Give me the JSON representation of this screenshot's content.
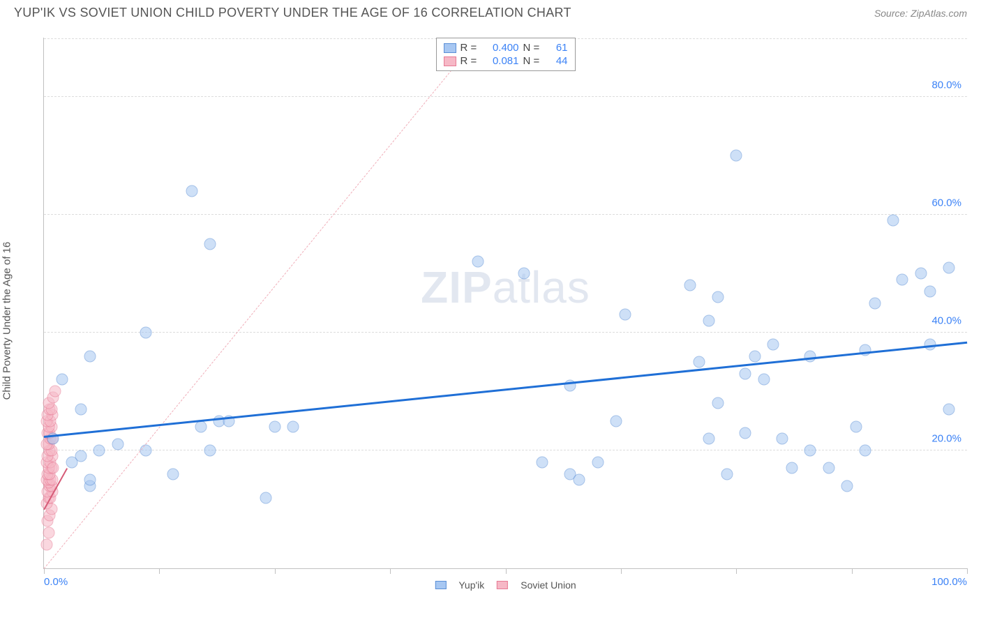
{
  "header": {
    "title": "YUP'IK VS SOVIET UNION CHILD POVERTY UNDER THE AGE OF 16 CORRELATION CHART",
    "source": "Source: ZipAtlas.com"
  },
  "watermark": {
    "bold": "ZIP",
    "light": "atlas"
  },
  "chart": {
    "type": "scatter",
    "yaxis_label": "Child Poverty Under the Age of 16",
    "xlim": [
      0,
      100
    ],
    "ylim": [
      0,
      90
    ],
    "x_ticks": [
      0,
      12.5,
      25,
      37.5,
      50,
      62.5,
      75,
      87.5,
      100
    ],
    "x_tick_labels": {
      "0": "0.0%",
      "100": "100.0%"
    },
    "y_gridlines": [
      20,
      40,
      60,
      80
    ],
    "y_tick_labels": {
      "20": "20.0%",
      "40": "40.0%",
      "60": "60.0%",
      "80": "80.0%"
    },
    "background_color": "#ffffff",
    "grid_color": "#dcdcdc",
    "axis_color": "#c0c0c0",
    "label_color": "#3b82f6",
    "label_fontsize": 15,
    "marker_radius": 8.5,
    "marker_opacity": 0.55,
    "series": [
      {
        "name": "Yup'ik",
        "color_fill": "#a7c7f2",
        "color_stroke": "#5b8fd6",
        "R": "0.400",
        "N": "61",
        "trend": {
          "x1": 0,
          "y1": 22.5,
          "x2": 100,
          "y2": 38.5,
          "color": "#1f6fd6",
          "width": 3
        },
        "points": [
          [
            2,
            32
          ],
          [
            4,
            27
          ],
          [
            5,
            36
          ],
          [
            5,
            14
          ],
          [
            5,
            15
          ],
          [
            6,
            20
          ],
          [
            3,
            18
          ],
          [
            1,
            22
          ],
          [
            4,
            19
          ],
          [
            8,
            21
          ],
          [
            11,
            20
          ],
          [
            11,
            40
          ],
          [
            14,
            16
          ],
          [
            16,
            64
          ],
          [
            17,
            24
          ],
          [
            18,
            20
          ],
          [
            18,
            55
          ],
          [
            19,
            25
          ],
          [
            20,
            25
          ],
          [
            24,
            12
          ],
          [
            25,
            24
          ],
          [
            27,
            24
          ],
          [
            47,
            52
          ],
          [
            52,
            50
          ],
          [
            54,
            18
          ],
          [
            57,
            31
          ],
          [
            57,
            16
          ],
          [
            58,
            15
          ],
          [
            60,
            18
          ],
          [
            62,
            25
          ],
          [
            63,
            43
          ],
          [
            70,
            48
          ],
          [
            71,
            35
          ],
          [
            72,
            42
          ],
          [
            72,
            22
          ],
          [
            73,
            28
          ],
          [
            73,
            46
          ],
          [
            74,
            16
          ],
          [
            75,
            70
          ],
          [
            76,
            33
          ],
          [
            76,
            23
          ],
          [
            77,
            36
          ],
          [
            78,
            32
          ],
          [
            79,
            38
          ],
          [
            80,
            22
          ],
          [
            81,
            17
          ],
          [
            83,
            36
          ],
          [
            83,
            20
          ],
          [
            85,
            17
          ],
          [
            87,
            14
          ],
          [
            88,
            24
          ],
          [
            89,
            20
          ],
          [
            89,
            37
          ],
          [
            90,
            45
          ],
          [
            92,
            59
          ],
          [
            93,
            49
          ],
          [
            95,
            50
          ],
          [
            96,
            38
          ],
          [
            96,
            47
          ],
          [
            98,
            51
          ],
          [
            98,
            27
          ]
        ]
      },
      {
        "name": "Soviet Union",
        "color_fill": "#f6b8c6",
        "color_stroke": "#e77a94",
        "R": "0.081",
        "N": "44",
        "trend": {
          "x1": 0,
          "y1": 0,
          "x2": 47,
          "y2": 90,
          "color": "#f0aeb9",
          "width": 1.2,
          "dashed": true
        },
        "trend_short": {
          "x1": 0,
          "y1": 10,
          "x2": 2.5,
          "y2": 17,
          "color": "#d65b77",
          "width": 2
        },
        "points": [
          [
            0.3,
            4
          ],
          [
            0.5,
            6
          ],
          [
            0.4,
            8
          ],
          [
            0.6,
            9
          ],
          [
            0.8,
            10
          ],
          [
            0.3,
            11
          ],
          [
            0.5,
            12
          ],
          [
            0.7,
            12
          ],
          [
            0.9,
            13
          ],
          [
            0.4,
            13
          ],
          [
            0.6,
            14
          ],
          [
            0.8,
            14
          ],
          [
            0.5,
            14.5
          ],
          [
            0.3,
            15
          ],
          [
            0.7,
            15
          ],
          [
            0.9,
            15
          ],
          [
            0.4,
            16
          ],
          [
            0.6,
            16
          ],
          [
            0.8,
            17
          ],
          [
            0.5,
            17
          ],
          [
            0.3,
            18
          ],
          [
            0.7,
            18
          ],
          [
            0.9,
            19
          ],
          [
            0.4,
            19
          ],
          [
            0.6,
            20
          ],
          [
            0.8,
            20
          ],
          [
            0.5,
            21
          ],
          [
            0.3,
            21
          ],
          [
            0.7,
            22
          ],
          [
            0.9,
            22
          ],
          [
            0.4,
            23
          ],
          [
            0.6,
            23
          ],
          [
            0.8,
            24
          ],
          [
            0.5,
            24
          ],
          [
            0.3,
            25
          ],
          [
            0.7,
            25
          ],
          [
            0.9,
            26
          ],
          [
            0.4,
            26
          ],
          [
            0.6,
            27
          ],
          [
            0.8,
            27
          ],
          [
            0.5,
            28
          ],
          [
            1.0,
            29
          ],
          [
            1.2,
            30
          ],
          [
            1.0,
            17
          ]
        ]
      }
    ],
    "legend_bottom": [
      {
        "label": "Yup'ik",
        "fill": "#a7c7f2",
        "stroke": "#5b8fd6"
      },
      {
        "label": "Soviet Union",
        "fill": "#f6b8c6",
        "stroke": "#e77a94"
      }
    ]
  }
}
